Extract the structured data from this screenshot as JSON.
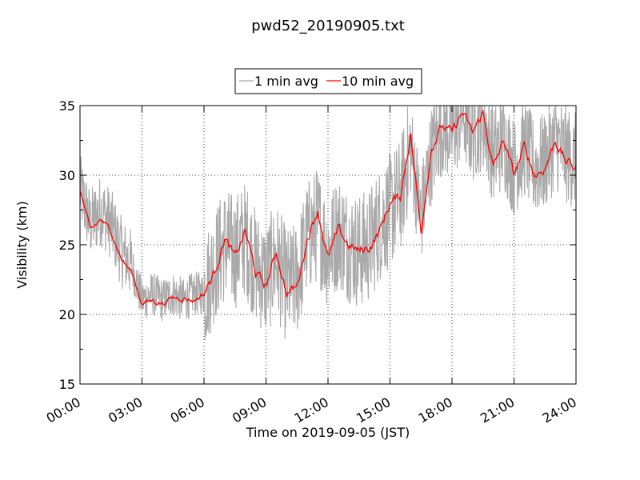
{
  "chart_data": {
    "type": "line",
    "title": "pwd52_20190905.txt",
    "xlabel": "Time on 2019-09-05 (JST)",
    "ylabel": "Visibility (km)",
    "xlim": [
      "00:00",
      "24:00"
    ],
    "ylim": [
      15,
      35
    ],
    "x_ticks": [
      "00:00",
      "03:00",
      "06:00",
      "09:00",
      "12:00",
      "15:00",
      "18:00",
      "21:00",
      "24:00"
    ],
    "y_ticks": [
      15,
      20,
      25,
      30,
      35
    ],
    "grid": true,
    "legend_position": "top-center",
    "series": [
      {
        "name": "1 min avg",
        "color": "#a9a9a9",
        "x": [
          "00:00",
          "00:30",
          "01:00",
          "01:30",
          "02:00",
          "02:30",
          "03:00",
          "03:30",
          "04:00",
          "04:30",
          "05:00",
          "05:30",
          "06:00",
          "06:30",
          "07:00",
          "07:30",
          "08:00",
          "08:30",
          "09:00",
          "09:30",
          "10:00",
          "10:30",
          "11:00",
          "11:30",
          "12:00",
          "12:30",
          "13:00",
          "13:30",
          "14:00",
          "14:30",
          "15:00",
          "15:30",
          "16:00",
          "16:30",
          "17:00",
          "17:30",
          "18:00",
          "18:30",
          "19:00",
          "19:30",
          "20:00",
          "20:30",
          "21:00",
          "21:30",
          "22:00",
          "22:30",
          "23:00",
          "23:30",
          "24:00"
        ],
        "y": [
          29.0,
          26.5,
          27.5,
          26.5,
          24.5,
          23.5,
          21.0,
          21.5,
          21.0,
          21.5,
          21.0,
          21.5,
          21.5,
          23.5,
          25.0,
          24.5,
          25.5,
          23.5,
          22.5,
          24.0,
          22.0,
          22.5,
          25.5,
          26.5,
          24.5,
          26.0,
          25.0,
          24.5,
          25.0,
          26.5,
          27.5,
          28.5,
          32.0,
          27.0,
          31.5,
          33.5,
          33.0,
          34.5,
          33.0,
          34.0,
          31.5,
          32.5,
          30.5,
          32.0,
          30.5,
          31.0,
          32.5,
          31.5,
          31.0
        ]
      },
      {
        "name": "10 min avg",
        "color": "#ff0000",
        "x": [
          "00:00",
          "00:30",
          "01:00",
          "01:30",
          "02:00",
          "02:30",
          "03:00",
          "03:30",
          "04:00",
          "04:30",
          "05:00",
          "05:30",
          "06:00",
          "06:30",
          "07:00",
          "07:30",
          "08:00",
          "08:30",
          "09:00",
          "09:30",
          "10:00",
          "10:30",
          "11:00",
          "11:30",
          "12:00",
          "12:30",
          "13:00",
          "13:30",
          "14:00",
          "14:30",
          "15:00",
          "15:30",
          "16:00",
          "16:30",
          "17:00",
          "17:30",
          "18:00",
          "18:30",
          "19:00",
          "19:30",
          "20:00",
          "20:30",
          "21:00",
          "21:30",
          "22:00",
          "22:30",
          "23:00",
          "23:30",
          "24:00"
        ],
        "y": [
          29.0,
          26.0,
          26.8,
          26.0,
          24.0,
          23.0,
          20.8,
          21.0,
          20.8,
          21.2,
          21.2,
          21.0,
          21.5,
          23.0,
          25.5,
          24.0,
          26.0,
          23.0,
          22.0,
          24.5,
          21.5,
          22.0,
          25.5,
          27.5,
          24.0,
          26.0,
          25.0,
          24.5,
          24.8,
          26.0,
          28.0,
          28.5,
          33.0,
          26.0,
          32.0,
          33.5,
          33.0,
          34.5,
          33.0,
          34.5,
          30.5,
          32.5,
          30.0,
          32.0,
          30.0,
          30.5,
          32.5,
          31.0,
          30.5
        ]
      }
    ]
  }
}
